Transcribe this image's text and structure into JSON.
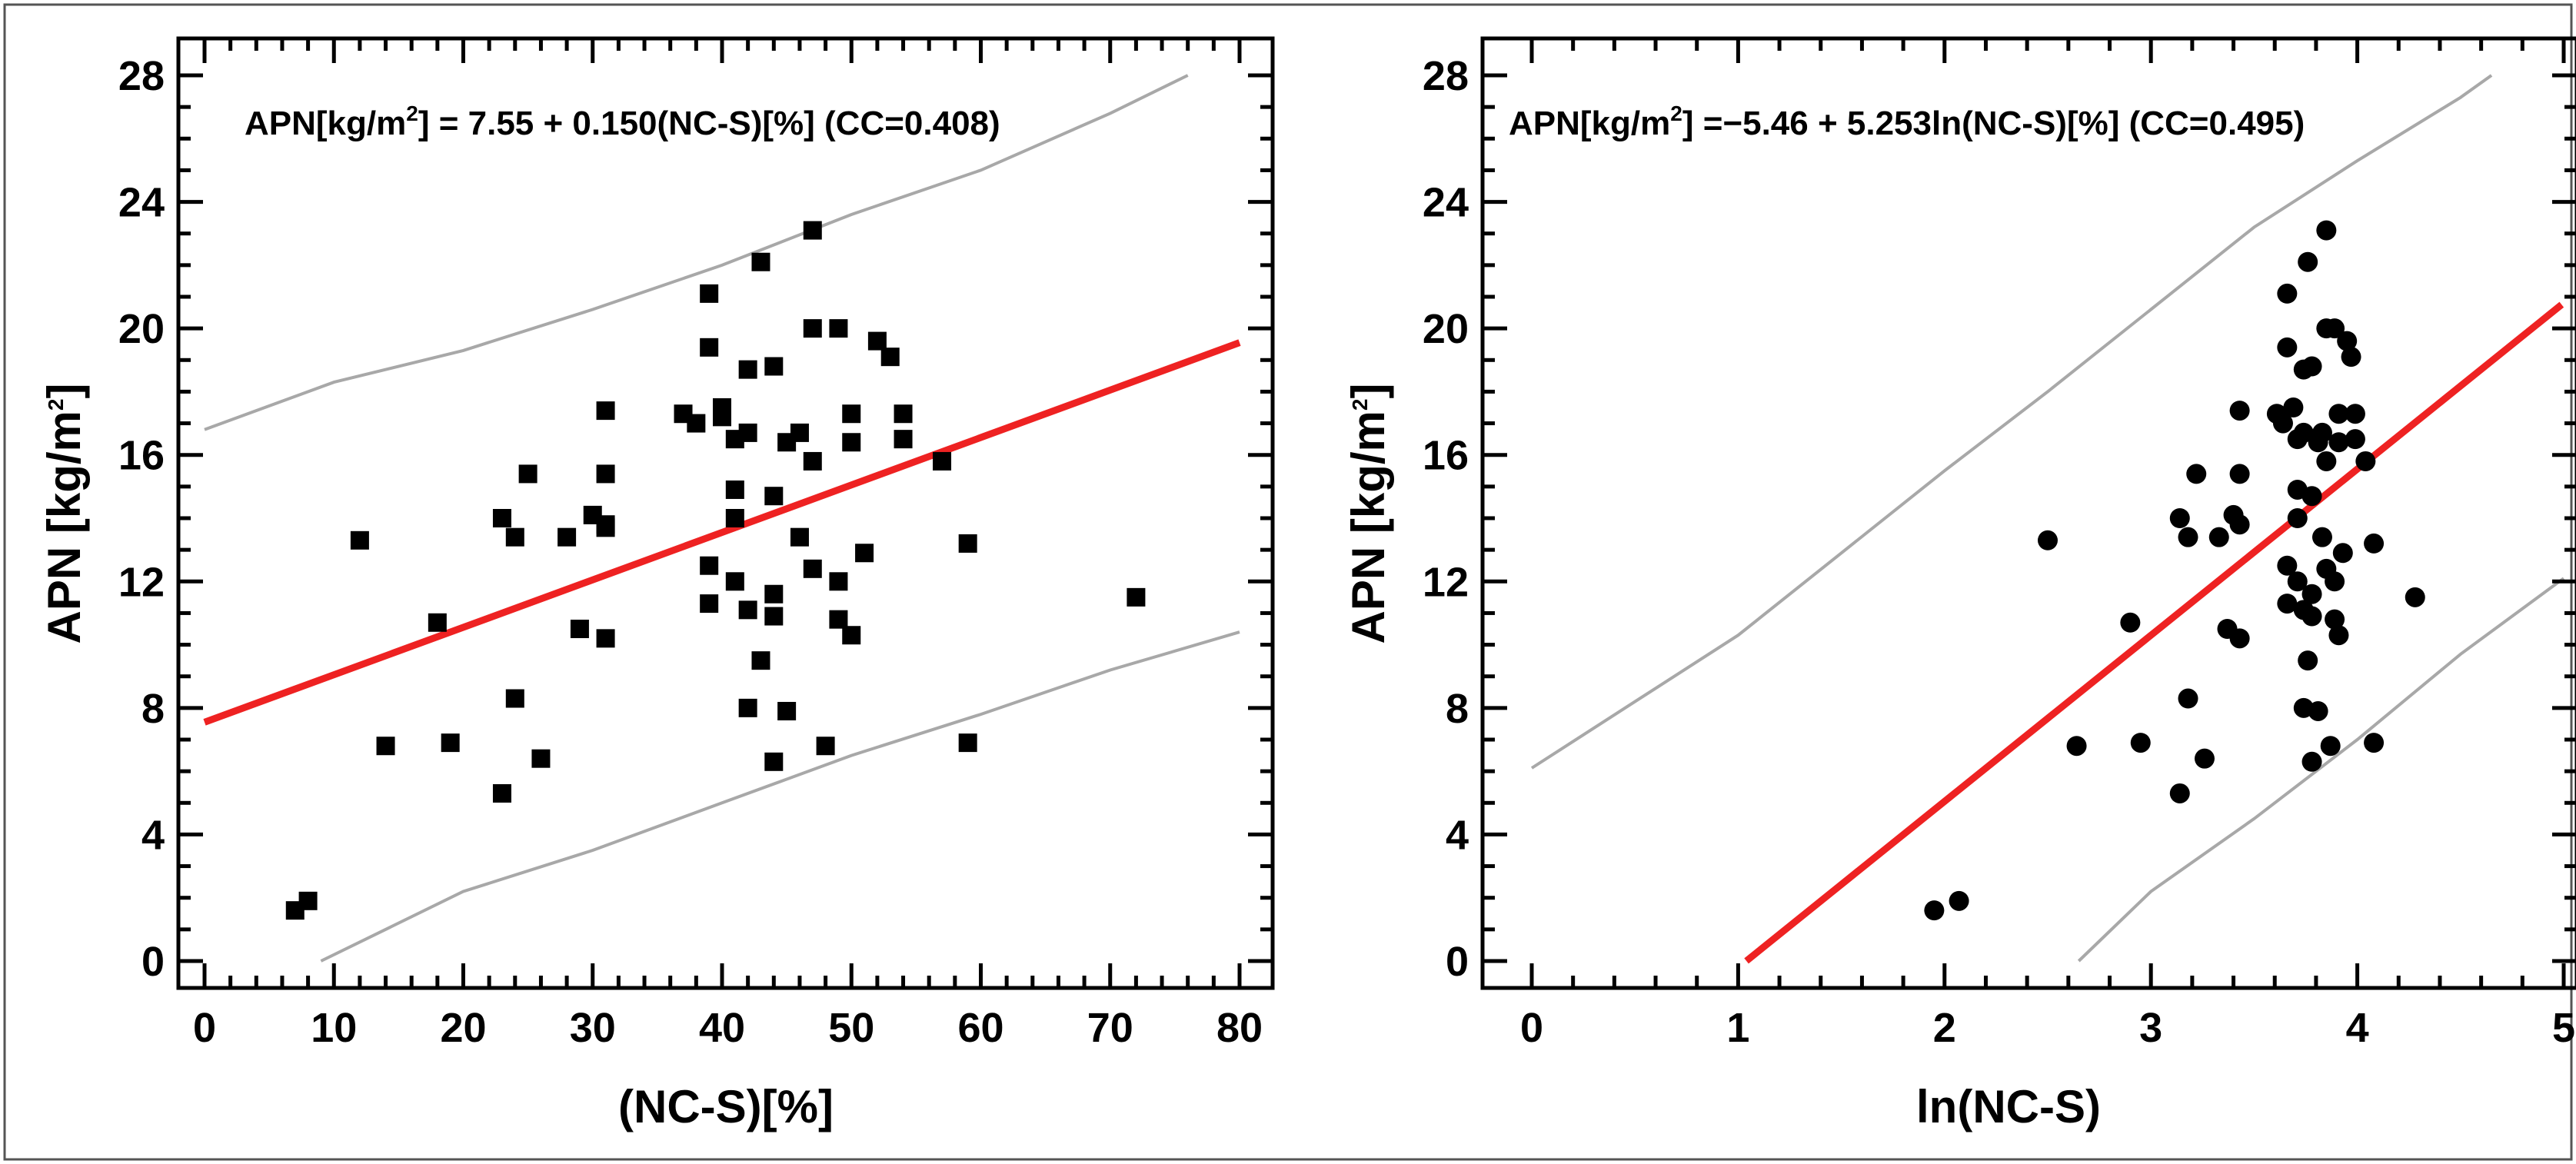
{
  "figure": {
    "colors": {
      "regression": "#ee2222",
      "bounds": "#a8a8a8",
      "points": "#000000"
    }
  },
  "chart_data": [
    {
      "type": "scatter",
      "marker": "square",
      "equation": {
        "prefix": "APN[kg/m",
        "sup": "2",
        "suffix": "] = 7.55 + 0.150(NC-S)[%] (CC=0.408)"
      },
      "xlabel": "(NC-S)[%]",
      "ylabel": {
        "main": "APN [kg/m",
        "sup": "2",
        "tail": "]"
      },
      "xlim": [
        0,
        80
      ],
      "ylim": [
        0,
        28
      ],
      "xticks": [
        0,
        10,
        20,
        30,
        40,
        50,
        60,
        70,
        80
      ],
      "yticks": [
        0,
        4,
        8,
        12,
        16,
        20,
        24,
        28
      ],
      "regression": {
        "intercept": 7.55,
        "slope": 0.15,
        "x_range": [
          0,
          80
        ]
      },
      "upper_bound": {
        "x": [
          0,
          10,
          20,
          30,
          40,
          50,
          60,
          70,
          76
        ],
        "y": [
          16.8,
          18.3,
          19.3,
          20.6,
          22.0,
          23.6,
          25.0,
          26.8,
          28.0
        ]
      },
      "lower_bound": {
        "x": [
          9,
          20,
          30,
          40,
          50,
          60,
          70,
          80
        ],
        "y": [
          0.0,
          2.2,
          3.5,
          5.0,
          6.5,
          7.8,
          9.2,
          10.4
        ]
      },
      "points": [
        [
          7,
          1.6
        ],
        [
          8,
          1.9
        ],
        [
          12,
          13.3
        ],
        [
          14,
          6.8
        ],
        [
          18,
          10.7
        ],
        [
          19,
          6.9
        ],
        [
          23,
          14.0
        ],
        [
          23,
          5.3
        ],
        [
          24,
          13.4
        ],
        [
          24,
          8.3
        ],
        [
          25,
          15.4
        ],
        [
          26,
          6.4
        ],
        [
          28,
          13.4
        ],
        [
          29,
          10.5
        ],
        [
          30,
          14.1
        ],
        [
          31,
          13.8
        ],
        [
          31,
          13.7
        ],
        [
          31,
          15.4
        ],
        [
          31,
          17.4
        ],
        [
          31,
          10.2
        ],
        [
          37,
          17.3
        ],
        [
          38,
          17.0
        ],
        [
          39,
          21.1
        ],
        [
          39,
          19.4
        ],
        [
          39,
          12.5
        ],
        [
          39,
          11.3
        ],
        [
          40,
          17.5
        ],
        [
          40,
          17.2
        ],
        [
          41,
          16.5
        ],
        [
          41,
          14.9
        ],
        [
          41,
          14.0
        ],
        [
          41,
          12.0
        ],
        [
          42,
          18.7
        ],
        [
          42,
          16.7
        ],
        [
          42,
          11.1
        ],
        [
          42,
          8.0
        ],
        [
          43,
          22.1
        ],
        [
          43,
          9.5
        ],
        [
          44,
          18.8
        ],
        [
          44,
          14.7
        ],
        [
          44,
          11.6
        ],
        [
          44,
          10.9
        ],
        [
          44,
          6.3
        ],
        [
          45,
          16.4
        ],
        [
          45,
          7.9
        ],
        [
          46,
          16.7
        ],
        [
          46,
          13.4
        ],
        [
          47,
          23.1
        ],
        [
          47,
          20.0
        ],
        [
          47,
          15.8
        ],
        [
          47,
          12.4
        ],
        [
          48,
          6.8
        ],
        [
          49,
          20.0
        ],
        [
          49,
          12.0
        ],
        [
          49,
          10.8
        ],
        [
          50,
          17.3
        ],
        [
          50,
          16.4
        ],
        [
          50,
          10.3
        ],
        [
          51,
          12.9
        ],
        [
          52,
          19.6
        ],
        [
          53,
          19.1
        ],
        [
          54,
          17.3
        ],
        [
          54,
          16.5
        ],
        [
          57,
          15.8
        ],
        [
          59,
          13.2
        ],
        [
          59,
          6.9
        ],
        [
          72,
          11.5
        ]
      ]
    },
    {
      "type": "scatter",
      "marker": "circle",
      "equation": {
        "prefix": "APN[kg/m",
        "sup": "2",
        "suffix": "] =−5.46 + 5.253ln(NC-S)[%] (CC=0.495)"
      },
      "xlabel": "ln(NC-S)",
      "ylabel": {
        "main": "APN [kg/m",
        "sup": "2",
        "tail": "]"
      },
      "xlim": [
        0,
        5
      ],
      "ylim": [
        0,
        28
      ],
      "xticks": [
        0,
        1,
        2,
        3,
        4,
        5
      ],
      "yticks": [
        0,
        4,
        8,
        12,
        16,
        20,
        24,
        28
      ],
      "regression": {
        "intercept": -5.46,
        "slope": 5.253,
        "x_range": [
          1.04,
          4.99
        ]
      },
      "upper_bound": {
        "x": [
          0,
          0.5,
          1,
          1.5,
          2,
          2.5,
          3,
          3.5,
          4,
          4.5,
          4.65
        ],
        "y": [
          6.1,
          8.2,
          10.3,
          12.9,
          15.5,
          18.0,
          20.6,
          23.2,
          25.3,
          27.3,
          28.0
        ]
      },
      "lower_bound": {
        "x": [
          2.65,
          3.0,
          3.5,
          4.0,
          4.5,
          5.0
        ],
        "y": [
          0.0,
          2.2,
          4.5,
          7.0,
          9.7,
          12.1
        ]
      },
      "points": [
        [
          1.95,
          1.6
        ],
        [
          2.07,
          1.9
        ],
        [
          2.5,
          13.3
        ],
        [
          2.64,
          6.8
        ],
        [
          2.9,
          10.7
        ],
        [
          2.95,
          6.9
        ],
        [
          3.14,
          14.0
        ],
        [
          3.14,
          5.3
        ],
        [
          3.18,
          13.4
        ],
        [
          3.18,
          8.3
        ],
        [
          3.22,
          15.4
        ],
        [
          3.26,
          6.4
        ],
        [
          3.33,
          13.4
        ],
        [
          3.37,
          10.5
        ],
        [
          3.4,
          14.1
        ],
        [
          3.43,
          13.8
        ],
        [
          3.43,
          15.4
        ],
        [
          3.43,
          17.4
        ],
        [
          3.43,
          10.2
        ],
        [
          3.61,
          17.3
        ],
        [
          3.64,
          17.0
        ],
        [
          3.66,
          21.1
        ],
        [
          3.66,
          19.4
        ],
        [
          3.66,
          12.5
        ],
        [
          3.66,
          11.3
        ],
        [
          3.69,
          17.5
        ],
        [
          3.71,
          16.5
        ],
        [
          3.71,
          14.9
        ],
        [
          3.71,
          14.0
        ],
        [
          3.71,
          12.0
        ],
        [
          3.74,
          18.7
        ],
        [
          3.74,
          16.7
        ],
        [
          3.74,
          11.1
        ],
        [
          3.74,
          8.0
        ],
        [
          3.76,
          22.1
        ],
        [
          3.76,
          9.5
        ],
        [
          3.78,
          18.8
        ],
        [
          3.78,
          14.7
        ],
        [
          3.78,
          11.6
        ],
        [
          3.78,
          10.9
        ],
        [
          3.78,
          6.3
        ],
        [
          3.81,
          16.4
        ],
        [
          3.81,
          7.9
        ],
        [
          3.83,
          16.7
        ],
        [
          3.83,
          13.4
        ],
        [
          3.85,
          23.1
        ],
        [
          3.85,
          20.0
        ],
        [
          3.85,
          15.8
        ],
        [
          3.85,
          12.4
        ],
        [
          3.87,
          6.8
        ],
        [
          3.89,
          20.0
        ],
        [
          3.89,
          12.0
        ],
        [
          3.89,
          10.8
        ],
        [
          3.91,
          17.3
        ],
        [
          3.91,
          16.4
        ],
        [
          3.91,
          10.3
        ],
        [
          3.93,
          12.9
        ],
        [
          3.95,
          19.6
        ],
        [
          3.97,
          19.1
        ],
        [
          3.99,
          17.3
        ],
        [
          3.99,
          16.5
        ],
        [
          4.04,
          15.8
        ],
        [
          4.08,
          13.2
        ],
        [
          4.08,
          6.9
        ],
        [
          4.28,
          11.5
        ]
      ]
    }
  ]
}
